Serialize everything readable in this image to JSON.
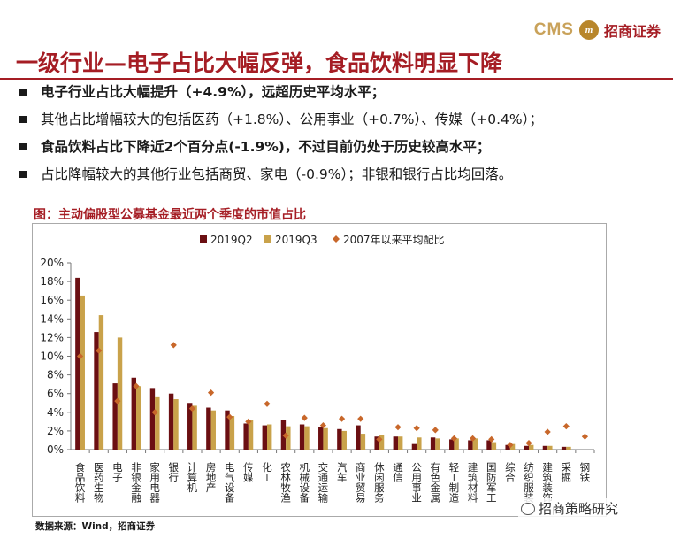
{
  "header": {
    "logo_text": "CMS",
    "logo_name": "招商证券",
    "title": "一级行业—电子占比大幅反弹，食品饮料明显下降",
    "accent_color": "#a51d24"
  },
  "bullets": [
    {
      "text": "电子行业占比大幅提升（+4.9%），远超历史平均水平；",
      "bold": true
    },
    {
      "text": "其他占比增幅较大的包括医药（+1.8%）、公用事业（+0.7%）、传媒（+0.4%）；",
      "bold": false
    },
    {
      "text": "食品饮料占比下降近2个百分点(-1.9%)，不过目前仍处于历史较高水平；",
      "bold": true
    },
    {
      "text": "占比降幅较大的其他行业包括商贸、家电（-0.9%）；非银和银行占比均回落。",
      "bold": false
    }
  ],
  "chart_title": "图：主动偏股型公募基金最近两个季度的市值占比",
  "source": "数据来源：Wind，招商证券",
  "watermark": "招商策略研究",
  "chart_data": {
    "type": "bar",
    "categories": [
      "食品饮料",
      "医药生物",
      "电子",
      "非银金融",
      "家用电器",
      "银行",
      "计算机",
      "房地产",
      "电气设备",
      "传媒",
      "化工",
      "农林牧渔",
      "机械设备",
      "交通运输",
      "汽车",
      "商业贸易",
      "休闲服务",
      "通信",
      "公用事业",
      "有色金属",
      "轻工制造",
      "建筑材料",
      "国防军工",
      "综合",
      "纺织服装",
      "建筑装饰",
      "采掘",
      "钢铁"
    ],
    "series": [
      {
        "name": "2019Q2",
        "type": "bar",
        "color": "#6b0f12",
        "values": [
          18.4,
          12.6,
          7.1,
          7.7,
          6.6,
          6.0,
          5.0,
          4.5,
          4.2,
          2.8,
          2.6,
          3.2,
          2.7,
          2.4,
          2.2,
          2.6,
          1.4,
          1.4,
          0.6,
          1.3,
          1.1,
          1.0,
          1.0,
          0.5,
          0.4,
          0.4,
          0.3,
          0.0
        ]
      },
      {
        "name": "2019Q3",
        "type": "bar",
        "color": "#c9a24a",
        "values": [
          16.5,
          14.4,
          12.0,
          6.8,
          5.7,
          5.4,
          4.7,
          4.2,
          3.6,
          3.2,
          2.7,
          2.5,
          2.5,
          2.3,
          2.0,
          1.7,
          1.6,
          1.4,
          1.3,
          1.2,
          1.2,
          1.2,
          0.8,
          0.6,
          0.5,
          0.4,
          0.3,
          0.0
        ]
      },
      {
        "name": "2007年以来平均配比",
        "type": "marker",
        "color": "#c8672a",
        "values": [
          10.0,
          10.6,
          5.2,
          6.8,
          4.0,
          11.2,
          4.4,
          6.1,
          3.5,
          3.0,
          4.9,
          1.5,
          3.4,
          2.6,
          3.3,
          3.3,
          1.1,
          2.4,
          2.3,
          2.1,
          1.2,
          1.2,
          1.1,
          0.5,
          0.7,
          1.9,
          2.5,
          1.4
        ]
      }
    ],
    "ylim": [
      0,
      20
    ],
    "yticks": [
      "0%",
      "2%",
      "4%",
      "6%",
      "8%",
      "10%",
      "12%",
      "14%",
      "16%",
      "18%",
      "20%"
    ],
    "ytick_values": [
      0,
      2,
      4,
      6,
      8,
      10,
      12,
      14,
      16,
      18,
      20
    ],
    "grid": false,
    "legend_position": "top"
  }
}
